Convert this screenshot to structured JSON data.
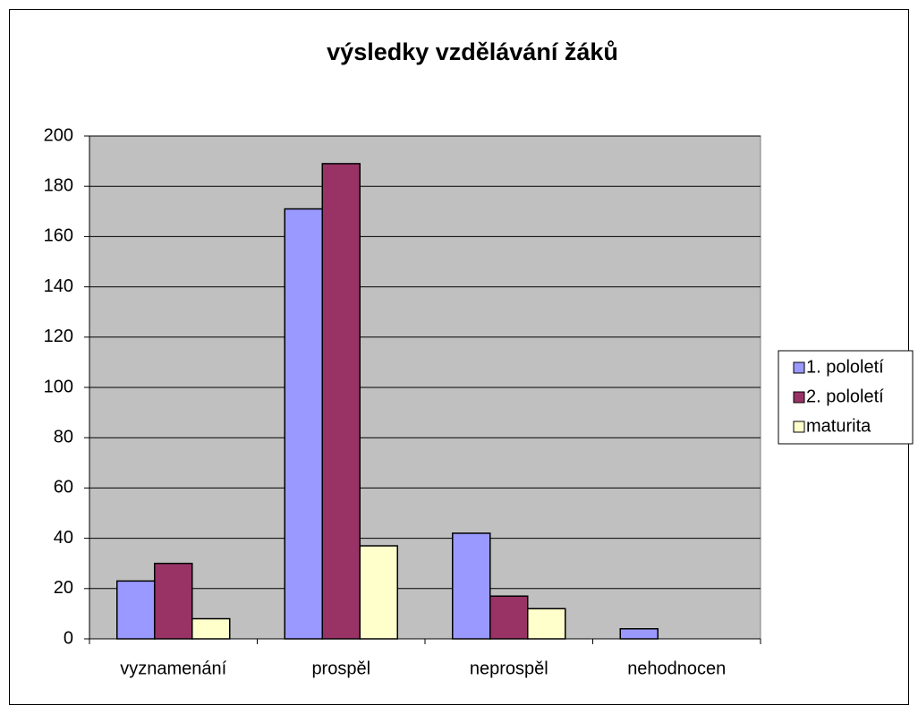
{
  "chart_data": {
    "type": "bar",
    "title": "výsledky vzdělávání žáků",
    "categories": [
      "vyznamenání",
      "prospěl",
      "neprospěl",
      "nehodnocen"
    ],
    "series": [
      {
        "name": "1. pololetí",
        "color": "#9999ff",
        "values": [
          23,
          171,
          42,
          4
        ]
      },
      {
        "name": "2. pololetí",
        "color": "#993366",
        "values": [
          30,
          189,
          17,
          0
        ]
      },
      {
        "name": "maturita",
        "color": "#ffffcc",
        "values": [
          8,
          37,
          12,
          0
        ]
      }
    ],
    "ylim": [
      0,
      200
    ],
    "yticks": [
      0,
      20,
      40,
      60,
      80,
      100,
      120,
      140,
      160,
      180,
      200
    ],
    "grid": true,
    "legend": "right",
    "plot_background": "#c0c0c0"
  }
}
